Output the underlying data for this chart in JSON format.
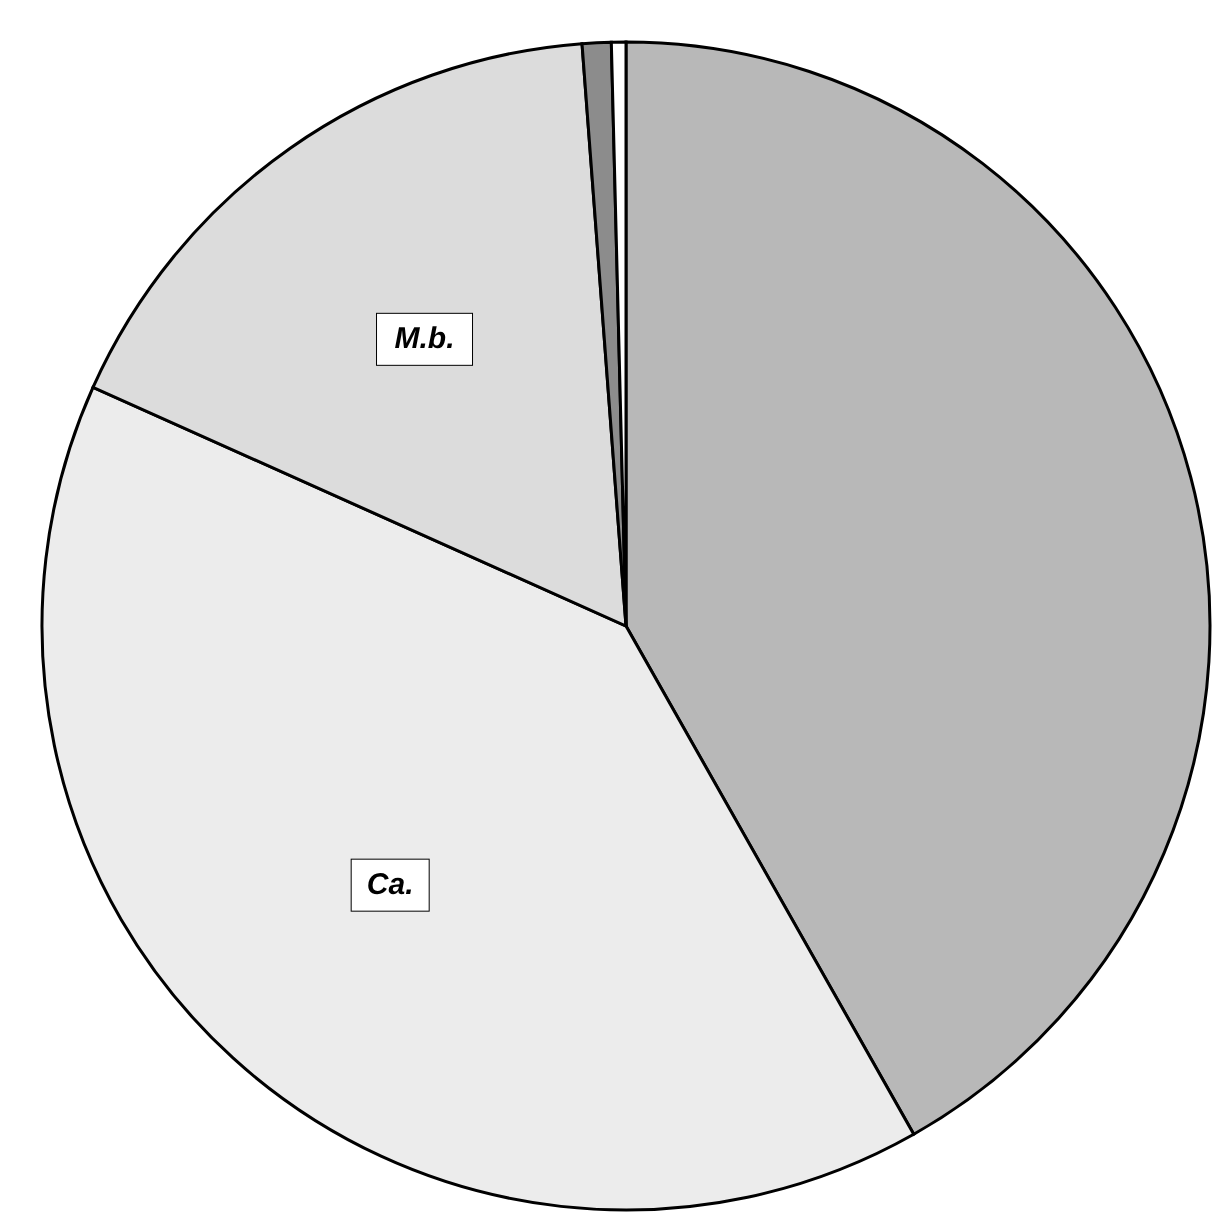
{
  "chart_data": {
    "type": "pie",
    "categories": [
      null,
      "Ca.",
      "M.b.",
      null,
      null
    ],
    "values": [
      41.8,
      39.9,
      17.1,
      0.8,
      0.4
    ],
    "colors": [
      "#b8b8b8",
      "#ececec",
      "#dcdcdc",
      "#8c8c8c",
      "#ffffff"
    ]
  }
}
